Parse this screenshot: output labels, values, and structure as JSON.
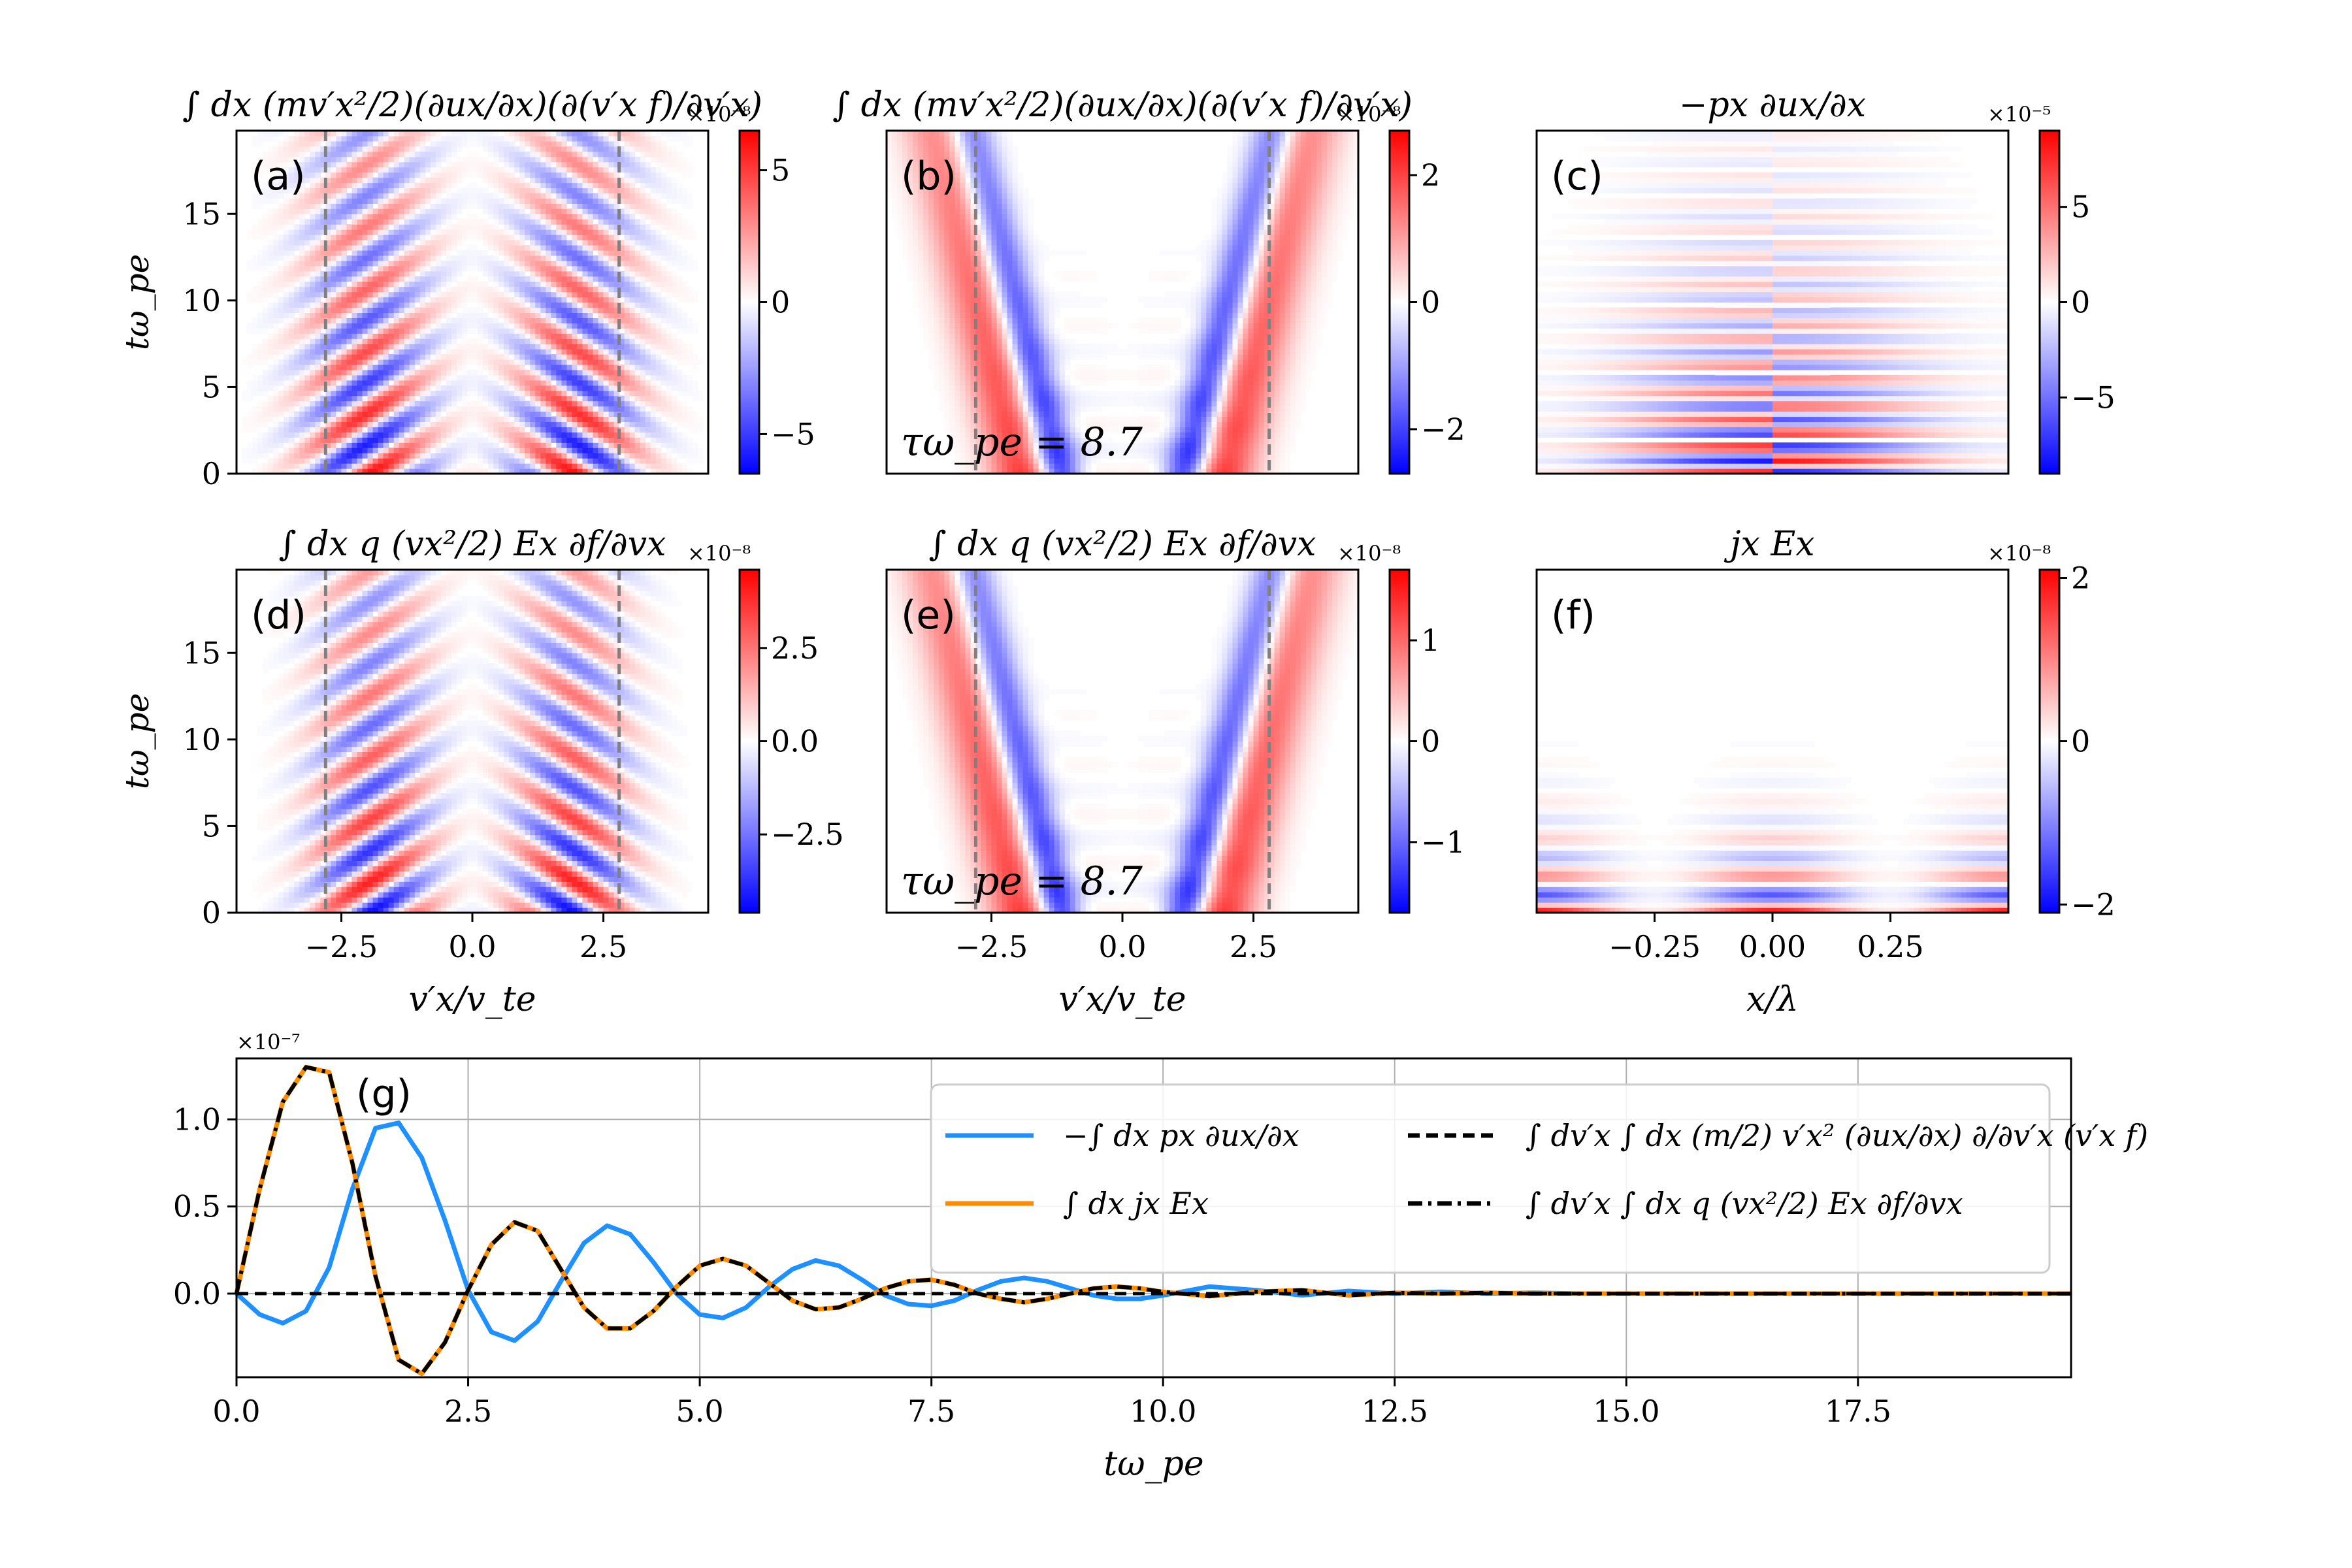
{
  "colors": {
    "negative": "#0000ff",
    "positive": "#ff0000",
    "neutral": "#ffffff",
    "guide_line": "#808080",
    "series_p": "#1e90ff",
    "series_j": "#ff8c00",
    "series_black": "#000000",
    "grid": "#b0b0b0"
  },
  "chart_data": [
    {
      "id": "a",
      "type": "heatmap",
      "panel_label": "(a)",
      "title": "∫ dx (mv′x²/2)(∂ux/∂x)(∂(v′x f)/∂v′x)",
      "xlabel": "",
      "ylabel": "tω_pe",
      "xlim": [
        -4.5,
        4.5
      ],
      "ylim": [
        0,
        19.8
      ],
      "xticks": [],
      "yticks": [
        0,
        5,
        10,
        15
      ],
      "ytick_labels": [
        "0",
        "5",
        "10",
        "15"
      ],
      "guide_lines_x": [
        -2.8,
        2.8
      ],
      "pattern": "diagonal-stripes",
      "annotation": "",
      "colorbar": {
        "exponent": "×10⁻⁸",
        "limit": 6.5,
        "ticks": [
          -5,
          0,
          5
        ],
        "tick_labels": [
          "−5",
          "0",
          "5"
        ]
      }
    },
    {
      "id": "b",
      "type": "heatmap",
      "panel_label": "(b)",
      "title": "∫ dx (mv′x²/2)(∂ux/∂x)(∂(v′x f)/∂v′x)",
      "xlabel": "",
      "ylabel": "",
      "xlim": [
        -4.5,
        4.5
      ],
      "ylim": [
        0,
        19.8
      ],
      "xticks": [],
      "yticks": [],
      "guide_lines_x": [
        -2.8,
        2.8
      ],
      "pattern": "v-shape",
      "annotation": "τω_pe = 8.7",
      "colorbar": {
        "exponent": "×10⁻⁸",
        "limit": 2.7,
        "ticks": [
          -2,
          0,
          2
        ],
        "tick_labels": [
          "−2",
          "0",
          "2"
        ]
      }
    },
    {
      "id": "c",
      "type": "heatmap",
      "panel_label": "(c)",
      "title": "−px ∂ux/∂x",
      "xlabel": "",
      "ylabel": "",
      "xlim": [
        -0.5,
        0.5
      ],
      "ylim": [
        0,
        19.8
      ],
      "xticks": [],
      "yticks": [],
      "guide_lines_x": [],
      "pattern": "horizontal-bands-antisymmetric",
      "annotation": "",
      "colorbar": {
        "exponent": "×10⁻⁵",
        "limit": 9.0,
        "ticks": [
          -5,
          0,
          5
        ],
        "tick_labels": [
          "−5",
          "0",
          "5"
        ]
      }
    },
    {
      "id": "d",
      "type": "heatmap",
      "panel_label": "(d)",
      "title": "∫ dx q (vx²/2) Ex ∂f/∂vx",
      "xlabel": "v′x/v_te",
      "ylabel": "tω_pe",
      "xlim": [
        -4.5,
        4.5
      ],
      "ylim": [
        0,
        19.8
      ],
      "xticks": [
        -2.5,
        0.0,
        2.5
      ],
      "xtick_labels": [
        "−2.5",
        "0.0",
        "2.5"
      ],
      "yticks": [
        0,
        5,
        10,
        15
      ],
      "ytick_labels": [
        "0",
        "5",
        "10",
        "15"
      ],
      "guide_lines_x": [
        -2.8,
        2.8
      ],
      "pattern": "diagonal-stripes-bottom",
      "annotation": "",
      "colorbar": {
        "exponent": "×10⁻⁸",
        "limit": 4.6,
        "ticks": [
          -2.5,
          0.0,
          2.5
        ],
        "tick_labels": [
          "−2.5",
          "0.0",
          "2.5"
        ]
      }
    },
    {
      "id": "e",
      "type": "heatmap",
      "panel_label": "(e)",
      "title": "∫ dx q (vx²/2) Ex ∂f/∂vx",
      "xlabel": "v′x/v_te",
      "ylabel": "",
      "xlim": [
        -4.5,
        4.5
      ],
      "ylim": [
        0,
        19.8
      ],
      "xticks": [
        -2.5,
        0.0,
        2.5
      ],
      "xtick_labels": [
        "−2.5",
        "0.0",
        "2.5"
      ],
      "yticks": [],
      "guide_lines_x": [
        -2.8,
        2.8
      ],
      "pattern": "v-shape",
      "annotation": "τω_pe = 8.7",
      "colorbar": {
        "exponent": "×10⁻⁸",
        "limit": 1.7,
        "ticks": [
          -1,
          0,
          1
        ],
        "tick_labels": [
          "−1",
          "0",
          "1"
        ]
      }
    },
    {
      "id": "f",
      "type": "heatmap",
      "panel_label": "(f)",
      "title": "jx Ex",
      "xlabel": "x/λ",
      "ylabel": "",
      "xlim": [
        -0.5,
        0.5
      ],
      "ylim": [
        0,
        19.8
      ],
      "xticks": [
        -0.25,
        0.0,
        0.25
      ],
      "xtick_labels": [
        "−0.25",
        "0.00",
        "0.25"
      ],
      "yticks": [],
      "guide_lines_x": [],
      "pattern": "horizontal-bands-symmetric",
      "annotation": "",
      "colorbar": {
        "exponent": "×10⁻⁸",
        "limit": 2.1,
        "ticks": [
          -2,
          0,
          2
        ],
        "tick_labels": [
          "−2",
          "0",
          "2"
        ]
      }
    },
    {
      "id": "g",
      "type": "line",
      "panel_label": "(g)",
      "xlabel": "tω_pe",
      "ylabel": "",
      "y_exponent": "×10⁻⁷",
      "xlim": [
        0,
        19.8
      ],
      "ylim": [
        -0.48,
        1.35
      ],
      "xticks": [
        0,
        2.5,
        5,
        7.5,
        10,
        12.5,
        15,
        17.5
      ],
      "xtick_labels": [
        "0.0",
        "2.5",
        "5.0",
        "7.5",
        "10.0",
        "12.5",
        "15.0",
        "17.5"
      ],
      "yticks": [
        0,
        0.5,
        1.0
      ],
      "ytick_labels": [
        "0.0",
        "0.5",
        "1.0"
      ],
      "grid": true,
      "legend_position": "upper-right",
      "x": [
        0,
        0.25,
        0.5,
        0.75,
        1.0,
        1.25,
        1.5,
        1.75,
        2.0,
        2.25,
        2.5,
        2.75,
        3.0,
        3.25,
        3.5,
        3.75,
        4.0,
        4.25,
        4.5,
        4.75,
        5.0,
        5.25,
        5.5,
        5.75,
        6.0,
        6.25,
        6.5,
        6.75,
        7.0,
        7.25,
        7.5,
        7.75,
        8.0,
        8.25,
        8.5,
        8.75,
        9.0,
        9.25,
        9.5,
        9.75,
        10.0,
        10.5,
        11.0,
        11.5,
        12.0,
        12.5,
        13.0,
        13.5,
        14.0,
        14.5,
        15.0,
        15.5,
        16.0,
        16.5,
        17.0,
        17.5,
        18.0,
        18.5,
        19.0,
        19.5,
        19.8
      ],
      "series": [
        {
          "name": "−∫ dx px ∂ux/∂x",
          "color": "#1e90ff",
          "style": "solid",
          "values": [
            0.0,
            -0.12,
            -0.17,
            -0.1,
            0.15,
            0.6,
            0.95,
            0.98,
            0.78,
            0.42,
            0.02,
            -0.22,
            -0.27,
            -0.16,
            0.07,
            0.29,
            0.39,
            0.34,
            0.18,
            0.0,
            -0.12,
            -0.14,
            -0.08,
            0.04,
            0.14,
            0.19,
            0.16,
            0.08,
            -0.01,
            -0.06,
            -0.07,
            -0.04,
            0.02,
            0.07,
            0.09,
            0.07,
            0.03,
            -0.01,
            -0.03,
            -0.03,
            -0.01,
            0.04,
            0.02,
            -0.01,
            0.015,
            0.0,
            0.01,
            0.0,
            0.005,
            0.0,
            0.0,
            0.0,
            0.0,
            0.0,
            0.0,
            0.0,
            0.0,
            0.0,
            0.0,
            0.0,
            0.0
          ]
        },
        {
          "name": "∫ dx jx Ex",
          "color": "#ff8c00",
          "style": "solid",
          "values": [
            0.0,
            0.6,
            1.1,
            1.3,
            1.27,
            0.75,
            0.1,
            -0.38,
            -0.46,
            -0.28,
            0.02,
            0.28,
            0.41,
            0.36,
            0.14,
            -0.08,
            -0.2,
            -0.2,
            -0.1,
            0.04,
            0.16,
            0.2,
            0.16,
            0.06,
            -0.04,
            -0.09,
            -0.08,
            -0.03,
            0.03,
            0.07,
            0.08,
            0.05,
            0.0,
            -0.03,
            -0.05,
            -0.03,
            0.0,
            0.03,
            0.04,
            0.03,
            0.01,
            -0.015,
            0.01,
            0.02,
            -0.01,
            0.005,
            0.0,
            0.005,
            0.0,
            0.0,
            0.0,
            0.0,
            0.0,
            0.0,
            0.0,
            0.0,
            0.0,
            0.0,
            0.0,
            0.0,
            0.0
          ]
        },
        {
          "name": "∫ dv′x ∫ dx (m/2) v′x² (∂ux/∂x) ∂/∂v′x (v′x f)",
          "color": "#000000",
          "style": "dashed",
          "values": [
            0.0,
            0.0,
            0.0,
            0.0,
            0.0,
            0.0,
            0.0,
            0.0,
            0.0,
            0.0,
            0.0,
            0.0,
            0.0,
            0.0,
            0.0,
            0.0,
            0.0,
            0.0,
            0.0,
            0.0,
            0.0,
            0.0,
            0.0,
            0.0,
            0.0,
            0.0,
            0.0,
            0.0,
            0.0,
            0.0,
            0.0,
            0.0,
            0.0,
            0.0,
            0.0,
            0.0,
            0.0,
            0.0,
            0.0,
            0.0,
            0.0,
            0.0,
            0.0,
            0.0,
            0.0,
            0.0,
            0.0,
            0.0,
            0.0,
            0.0,
            0.0,
            0.0,
            0.0,
            0.0,
            0.0,
            0.0,
            0.0,
            0.0,
            0.0,
            0.0,
            0.0
          ]
        },
        {
          "name": "∫ dv′x ∫ dx q (vx²/2) Ex ∂f/∂vx",
          "color": "#000000",
          "style": "dashdot",
          "values": [
            0.0,
            0.6,
            1.1,
            1.3,
            1.27,
            0.75,
            0.1,
            -0.38,
            -0.46,
            -0.28,
            0.02,
            0.28,
            0.41,
            0.36,
            0.14,
            -0.08,
            -0.2,
            -0.2,
            -0.1,
            0.04,
            0.16,
            0.2,
            0.16,
            0.06,
            -0.04,
            -0.09,
            -0.08,
            -0.03,
            0.03,
            0.07,
            0.08,
            0.05,
            0.0,
            -0.03,
            -0.05,
            -0.03,
            0.0,
            0.03,
            0.04,
            0.03,
            0.01,
            -0.015,
            0.01,
            0.02,
            -0.01,
            0.005,
            0.0,
            0.005,
            0.0,
            0.0,
            0.0,
            0.0,
            0.0,
            0.0,
            0.0,
            0.0,
            0.0,
            0.0,
            0.0,
            0.0,
            0.0
          ]
        }
      ]
    }
  ]
}
